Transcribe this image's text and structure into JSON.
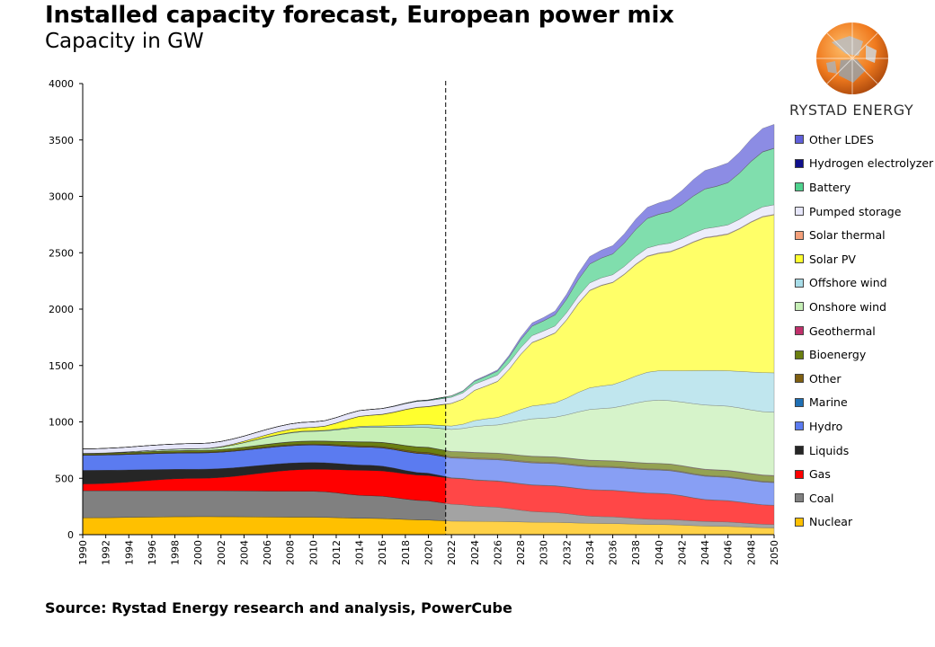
{
  "title": "Installed capacity forecast, European power mix",
  "subtitle": "Capacity in GW",
  "source": "Source:  Rystad Energy research and analysis,  PowerCube",
  "brand": "RYSTAD ENERGY",
  "chart_data": {
    "type": "area",
    "stacked": true,
    "x": [
      1990,
      2000,
      2010,
      2015,
      2020,
      2022,
      2025,
      2030,
      2035,
      2040,
      2045,
      2050
    ],
    "ylim": [
      0,
      4000
    ],
    "yticks": [
      0,
      500,
      1000,
      1500,
      2000,
      2500,
      3000,
      3500,
      4000
    ],
    "xticks": [
      1990,
      1992,
      1994,
      1996,
      1998,
      2000,
      2002,
      2004,
      2006,
      2008,
      2010,
      2012,
      2014,
      2016,
      2018,
      2020,
      2022,
      2024,
      2026,
      2028,
      2030,
      2032,
      2034,
      2036,
      2038,
      2040,
      2042,
      2044,
      2046,
      2048,
      2050
    ],
    "forecast_start": 2021.5,
    "grid": false,
    "legend_position": "right",
    "series": [
      {
        "name": "Nuclear",
        "color": "#FFC000",
        "values": [
          150,
          160,
          155,
          145,
          130,
          120,
          118,
          110,
          100,
          90,
          75,
          60
        ]
      },
      {
        "name": "Coal",
        "color": "#808080",
        "values": [
          240,
          230,
          230,
          200,
          170,
          150,
          130,
          90,
          60,
          45,
          40,
          30
        ]
      },
      {
        "name": "Gas",
        "color": "#FF0000",
        "values": [
          60,
          110,
          195,
          225,
          225,
          230,
          230,
          235,
          235,
          230,
          190,
          170
        ]
      },
      {
        "name": "Liquids",
        "color": "#262626",
        "values": [
          120,
          80,
          60,
          45,
          20,
          5,
          4,
          3,
          2,
          2,
          2,
          1
        ]
      },
      {
        "name": "Hydro",
        "color": "#5B7BF0",
        "values": [
          135,
          145,
          155,
          160,
          170,
          175,
          185,
          195,
          200,
          205,
          205,
          200
        ]
      },
      {
        "name": "Marine",
        "color": "#1F6FB4",
        "values": [
          0,
          0,
          1,
          1,
          1,
          1,
          2,
          2,
          3,
          3,
          3,
          3
        ]
      },
      {
        "name": "Other",
        "color": "#7F5F10",
        "values": [
          5,
          6,
          8,
          10,
          12,
          10,
          10,
          9,
          8,
          7,
          6,
          5
        ]
      },
      {
        "name": "Bioenergy",
        "color": "#6B7F10",
        "values": [
          10,
          15,
          25,
          35,
          45,
          45,
          45,
          46,
          47,
          48,
          50,
          52
        ]
      },
      {
        "name": "Geothermal",
        "color": "#C0306B",
        "values": [
          1,
          1,
          2,
          2,
          2,
          2,
          3,
          3,
          3,
          3,
          4,
          4
        ]
      },
      {
        "name": "Onshore wind",
        "color": "#C6EFB6",
        "values": [
          0,
          15,
          85,
          130,
          175,
          195,
          240,
          340,
          460,
          560,
          570,
          560
        ]
      },
      {
        "name": "Offshore wind",
        "color": "#A8DDE8",
        "values": [
          0,
          0,
          5,
          10,
          25,
          30,
          60,
          120,
          200,
          260,
          310,
          350
        ]
      },
      {
        "name": "Solar PV",
        "color": "#FFFF2E",
        "values": [
          0,
          1,
          30,
          95,
          160,
          200,
          290,
          590,
          890,
          1040,
          1190,
          1400
        ]
      },
      {
        "name": "Solar thermal",
        "color": "#F4A07A",
        "values": [
          0,
          0,
          1,
          2,
          2,
          2,
          2,
          3,
          4,
          5,
          5,
          5
        ]
      },
      {
        "name": "Pumped storage",
        "color": "#E6E6FA",
        "values": [
          40,
          45,
          48,
          50,
          52,
          53,
          55,
          60,
          65,
          72,
          78,
          85
        ]
      },
      {
        "name": "Battery",
        "color": "#4FD28E",
        "values": [
          0,
          0,
          0,
          1,
          5,
          12,
          30,
          90,
          175,
          270,
          360,
          500
        ]
      },
      {
        "name": "Hydrogen electrolyzer",
        "color": "#10108C",
        "values": [
          0,
          0,
          0,
          0,
          0,
          0,
          0,
          1,
          1,
          2,
          2,
          3
        ]
      },
      {
        "name": "Other LDES",
        "color": "#6060DA",
        "values": [
          0,
          0,
          0,
          0,
          1,
          2,
          8,
          30,
          70,
          100,
          170,
          210
        ]
      }
    ]
  },
  "legend_order": [
    "Other LDES",
    "Hydrogen electrolyzer",
    "Battery",
    "Pumped storage",
    "Solar thermal",
    "Solar PV",
    "Offshore wind",
    "Onshore wind",
    "Geothermal",
    "Bioenergy",
    "Other",
    "Marine",
    "Hydro",
    "Liquids",
    "Gas",
    "Coal",
    "Nuclear"
  ]
}
